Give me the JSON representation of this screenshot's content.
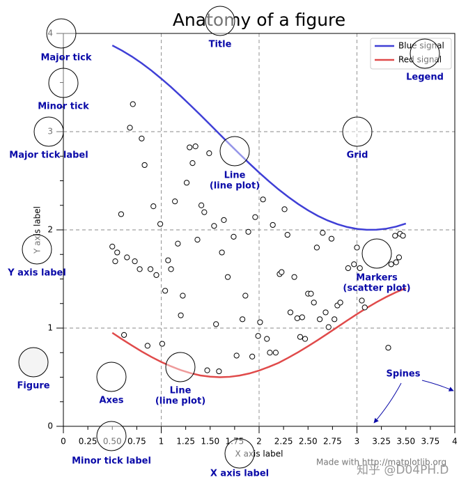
{
  "chart_data": {
    "type": "line",
    "title": "Anatomy of a figure",
    "xlabel": "X axis label",
    "ylabel": "Y axis label",
    "xlim": [
      0,
      4
    ],
    "ylim": [
      0,
      4
    ],
    "xticks": [
      0,
      1,
      2,
      3,
      4
    ],
    "xminorticks": [
      0.25,
      {
        "value": 0.5,
        "label": "0.50"
      },
      0.75,
      1.25,
      {
        "value": 1.5,
        "label": "1.50"
      },
      1.75,
      2.25,
      {
        "value": 2.5,
        "label": "2.50"
      },
      2.75,
      3.25,
      {
        "value": 3.5,
        "label": "3.50"
      },
      3.75
    ],
    "yticks": [
      0,
      1,
      2,
      3,
      4
    ],
    "yminorticks": [
      0.25,
      0.5,
      0.75,
      1.25,
      1.5,
      1.75,
      2.25,
      2.5,
      2.75,
      3.25,
      3.5,
      3.75
    ],
    "grid": true,
    "legend": "upper right",
    "x": [
      0.5,
      0.6,
      0.7,
      0.8,
      0.9,
      1.0,
      1.1,
      1.2,
      1.3,
      1.4,
      1.5,
      1.6,
      1.7,
      1.8,
      1.9,
      2.0,
      2.1,
      2.2,
      2.3,
      2.4,
      2.5,
      2.6,
      2.7,
      2.8,
      2.9,
      3.0,
      3.1,
      3.2,
      3.3,
      3.4,
      3.5
    ],
    "series": [
      {
        "name": "Blue signal",
        "color": "#3f3fd6",
        "values": [
          3.878,
          3.825,
          3.765,
          3.697,
          3.622,
          3.54,
          3.454,
          3.362,
          3.267,
          3.17,
          3.071,
          2.971,
          2.871,
          2.773,
          2.677,
          2.584,
          2.495,
          2.411,
          2.334,
          2.263,
          2.199,
          2.143,
          2.096,
          2.058,
          2.029,
          2.01,
          2.001,
          2.002,
          2.012,
          2.033,
          2.064
        ]
      },
      {
        "name": "Red signal",
        "color": "#e04a4a",
        "values": [
          0.952,
          0.886,
          0.823,
          0.762,
          0.706,
          0.655,
          0.611,
          0.572,
          0.541,
          0.518,
          0.505,
          0.5,
          0.504,
          0.517,
          0.538,
          0.568,
          0.605,
          0.646,
          0.699,
          0.755,
          0.815,
          0.878,
          0.944,
          1.01,
          1.077,
          1.142,
          1.205,
          1.264,
          1.317,
          1.365,
          1.406
        ]
      }
    ],
    "points": {
      "x": [
        0.71,
        0.68,
        0.8,
        0.83,
        0.59,
        0.5,
        0.53,
        0.55,
        0.65,
        0.73,
        0.78,
        0.62,
        0.86,
        0.92,
        0.99,
        0.89,
        0.95,
        1.01,
        1.04,
        1.07,
        1.1,
        1.14,
        1.17,
        1.2,
        1.22,
        1.26,
        1.29,
        1.35,
        1.32,
        1.37,
        1.41,
        1.44,
        1.47,
        1.49,
        1.54,
        1.56,
        1.59,
        1.62,
        1.64,
        1.68,
        1.74,
        1.77,
        1.83,
        1.86,
        1.89,
        1.93,
        1.96,
        1.99,
        2.01,
        2.04,
        2.08,
        2.11,
        2.14,
        2.17,
        2.21,
        2.23,
        2.26,
        2.29,
        2.32,
        2.36,
        2.39,
        2.42,
        2.44,
        2.47,
        2.5,
        2.53,
        2.56,
        2.59,
        2.62,
        2.65,
        2.68,
        2.71,
        2.74,
        2.77,
        2.8,
        2.83,
        2.91,
        2.97,
        3.0,
        3.03,
        3.05,
        3.08,
        3.32,
        3.4,
        3.43,
        3.39,
        3.44,
        3.47,
        3.35
      ],
      "y": [
        3.28,
        3.04,
        2.93,
        2.66,
        2.16,
        1.83,
        1.68,
        1.77,
        1.72,
        1.68,
        1.6,
        0.93,
        0.82,
        2.24,
        2.06,
        1.6,
        1.54,
        0.84,
        1.38,
        1.69,
        1.6,
        2.29,
        1.86,
        1.13,
        1.33,
        2.48,
        2.84,
        2.85,
        2.68,
        1.9,
        2.25,
        2.18,
        0.57,
        2.78,
        2.04,
        1.04,
        0.56,
        1.77,
        2.1,
        1.52,
        1.93,
        0.72,
        1.09,
        1.33,
        1.98,
        0.71,
        2.13,
        0.92,
        1.06,
        2.31,
        0.89,
        0.75,
        2.05,
        0.75,
        1.55,
        1.57,
        2.21,
        1.95,
        1.16,
        1.52,
        1.1,
        0.91,
        1.11,
        0.89,
        1.35,
        1.35,
        1.26,
        1.82,
        1.09,
        1.97,
        1.16,
        1.01,
        1.91,
        1.09,
        1.23,
        1.26,
        1.61,
        1.65,
        1.82,
        1.61,
        1.28,
        1.21,
        0.8,
        1.67,
        1.72,
        1.94,
        1.96,
        1.94,
        1.65
      ]
    },
    "annotations": [
      {
        "lines": [
          "Major tick"
        ]
      },
      {
        "lines": [
          "Minor tick"
        ]
      },
      {
        "lines": [
          "Major tick label"
        ]
      },
      {
        "lines": [
          "Y axis label"
        ]
      },
      {
        "lines": [
          "Figure"
        ]
      },
      {
        "lines": [
          "Axes"
        ]
      },
      {
        "lines": [
          "Minor tick label"
        ]
      },
      {
        "lines": [
          "X axis label"
        ]
      },
      {
        "lines": [
          "Line",
          "(line plot)"
        ]
      },
      {
        "lines": [
          "Line",
          "(line plot)"
        ]
      },
      {
        "lines": [
          "Title"
        ]
      },
      {
        "lines": [
          "Grid"
        ]
      },
      {
        "lines": [
          "Legend"
        ]
      },
      {
        "lines": [
          "Markers",
          "(scatter plot)"
        ]
      },
      {
        "lines": [
          "Spines"
        ]
      }
    ],
    "credit": "Made with http://matplotlib.org",
    "watermark": "知乎 @D04PH.D"
  }
}
